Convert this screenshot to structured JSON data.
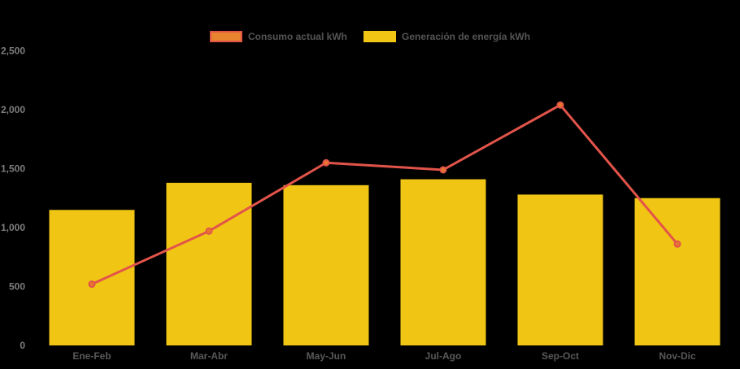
{
  "chart_data": {
    "type": "bar",
    "categories": [
      "Ene-Feb",
      "Mar-Abr",
      "May-Jun",
      "Jul-Ago",
      "Sep-Oct",
      "Nov-Dic"
    ],
    "series": [
      {
        "name": "Consumo actual kWh",
        "type": "line",
        "values": [
          520,
          970,
          1550,
          1490,
          2040,
          860
        ]
      },
      {
        "name": "Generación de energía kWh",
        "type": "bar",
        "values": [
          1150,
          1380,
          1360,
          1410,
          1280,
          1250
        ]
      }
    ],
    "title": "",
    "xlabel": "",
    "ylabel": "",
    "ylim": [
      0,
      2500
    ],
    "ytick_interval": 500,
    "ytick_labels": [
      "0",
      "500",
      "1,000",
      "1,500",
      "2,000",
      "2,500"
    ],
    "grid": false,
    "legend_position": "top-center"
  },
  "legend": {
    "items": [
      {
        "label": "Consumo actual kWh",
        "swatch_fill": "#E8832E",
        "swatch_border": "#E2544A"
      },
      {
        "label": "Generación de energía kWh",
        "swatch_fill": "#F0C514",
        "swatch_border": "#F0C514"
      }
    ]
  },
  "colors": {
    "background": "#000000",
    "bar_fill": "#F0C514",
    "line_stroke": "#E2544A",
    "point_fill": "#E8772E",
    "point_stroke": "#E2544A",
    "y_axis_label": "#7D7D7D",
    "x_axis_label": "#595959",
    "legend_text": "#555555"
  }
}
